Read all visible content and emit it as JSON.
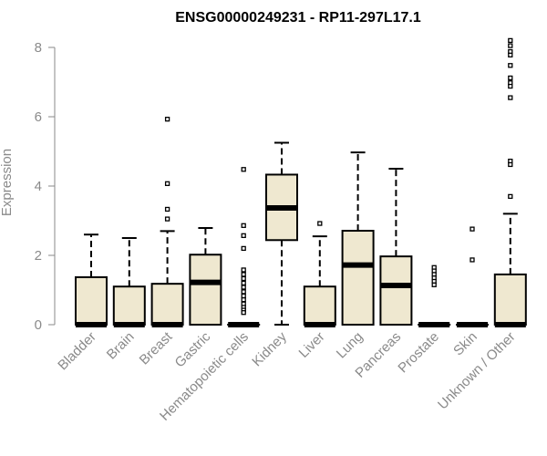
{
  "chart_data": {
    "type": "box",
    "title": "ENSG00000249231 - RP11-297L17.1",
    "xlabel": "",
    "ylabel": "Expression",
    "ylim": [
      0,
      8.2
    ],
    "yticks": [
      0,
      2,
      4,
      6,
      8
    ],
    "box_fill": "#efe8d0",
    "box_stroke": "#000000",
    "axis_color": "#8a8a8a",
    "grid": false,
    "categories": [
      "Bladder",
      "Brain",
      "Breast",
      "Gastric",
      "Hematopoietic cells",
      "Kidney",
      "Liver",
      "Lung",
      "Pancreas",
      "Prostate",
      "Skin",
      "Unknown / Other"
    ],
    "boxes": [
      {
        "q1": 0,
        "median": 0,
        "q3": 1.37,
        "whisker_low": 0,
        "whisker_high": 2.6,
        "outliers": []
      },
      {
        "q1": 0,
        "median": 0,
        "q3": 1.1,
        "whisker_low": 0,
        "whisker_high": 2.5,
        "outliers": []
      },
      {
        "q1": 0,
        "median": 0,
        "q3": 1.18,
        "whisker_low": 0,
        "whisker_high": 2.7,
        "outliers": [
          5.93,
          4.07,
          3.33,
          3.05
        ]
      },
      {
        "q1": 0,
        "median": 1.22,
        "q3": 2.02,
        "whisker_low": 0,
        "whisker_high": 2.79,
        "outliers": []
      },
      {
        "q1": 0,
        "median": 0,
        "q3": 0,
        "whisker_low": 0,
        "whisker_high": 0,
        "outliers": [
          4.48,
          2.86,
          2.57,
          2.2,
          1.58,
          1.45,
          1.33,
          1.2,
          1.08,
          0.95,
          0.83,
          0.72,
          0.6,
          0.5,
          0.42,
          0.35
        ]
      },
      {
        "q1": 2.44,
        "median": 3.37,
        "q3": 4.33,
        "whisker_low": 0,
        "whisker_high": 5.25,
        "outliers": []
      },
      {
        "q1": 0,
        "median": 0,
        "q3": 1.1,
        "whisker_low": 0,
        "whisker_high": 2.55,
        "outliers": [
          2.92
        ]
      },
      {
        "q1": 0,
        "median": 1.72,
        "q3": 2.71,
        "whisker_low": 0,
        "whisker_high": 4.97,
        "outliers": []
      },
      {
        "q1": 0,
        "median": 1.13,
        "q3": 1.97,
        "whisker_low": 0,
        "whisker_high": 4.5,
        "outliers": []
      },
      {
        "q1": 0,
        "median": 0,
        "q3": 0,
        "whisker_low": 0,
        "whisker_high": 0,
        "outliers": [
          1.65,
          1.55,
          1.45,
          1.35,
          1.25,
          1.15
        ]
      },
      {
        "q1": 0,
        "median": 0,
        "q3": 0,
        "whisker_low": 0,
        "whisker_high": 0,
        "outliers": [
          2.76,
          1.87
        ]
      },
      {
        "q1": 0,
        "median": 0,
        "q3": 1.45,
        "whisker_low": 0,
        "whisker_high": 3.2,
        "outliers": [
          8.2,
          8.05,
          7.88,
          7.78,
          7.48,
          7.12,
          6.98,
          6.88,
          6.55,
          4.72,
          4.62,
          3.7
        ]
      }
    ]
  }
}
